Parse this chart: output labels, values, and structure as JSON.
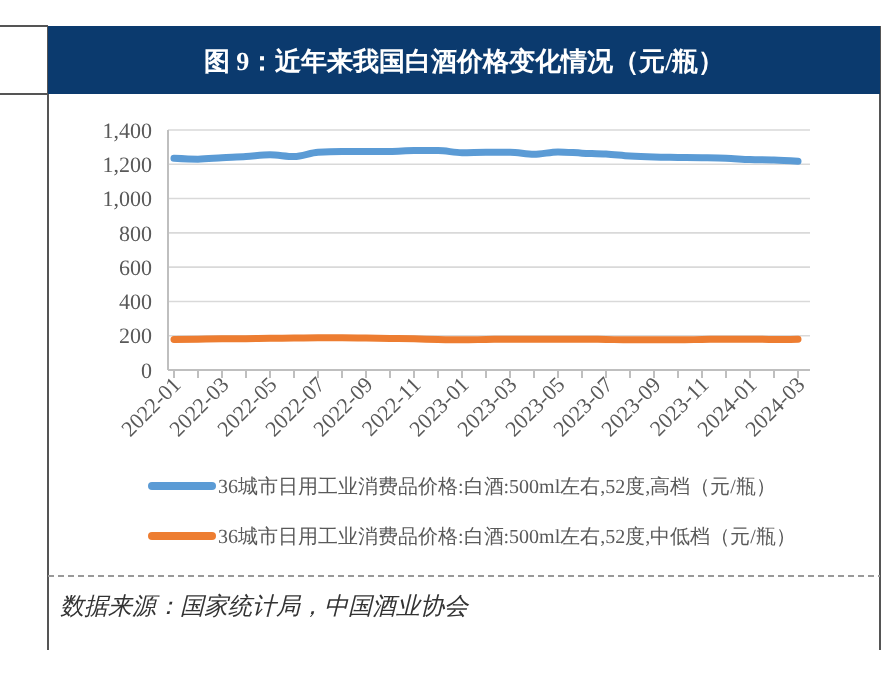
{
  "chart_data": {
    "type": "line",
    "title": "图 9：近年来我国白酒价格变化情况（元/瓶）",
    "categories": [
      "2022-01",
      null,
      "2022-03",
      null,
      "2022-05",
      null,
      "2022-07",
      null,
      "2022-09",
      null,
      "2022-11",
      null,
      "2023-01",
      null,
      "2023-03",
      null,
      "2023-05",
      null,
      "2023-07",
      null,
      "2023-09",
      null,
      "2023-11",
      null,
      "2024-01",
      null,
      "2024-03"
    ],
    "series": [
      {
        "name": "36城市日用工业消费品价格:白酒:500ml左右,52度,高档（元/瓶）",
        "color": "#5b9bd5",
        "values": [
          1235,
          1230,
          1238,
          1245,
          1255,
          1245,
          1270,
          1275,
          1275,
          1275,
          1280,
          1280,
          1268,
          1270,
          1270,
          1258,
          1272,
          1265,
          1260,
          1248,
          1242,
          1240,
          1238,
          1235,
          1228,
          1225,
          1218
        ]
      },
      {
        "name": "36城市日用工业消费品价格:白酒:500ml左右,52度,中低档（元/瓶）",
        "color": "#ed7d31",
        "values": [
          178,
          180,
          182,
          183,
          185,
          186,
          188,
          188,
          186,
          184,
          182,
          178,
          176,
          178,
          180,
          180,
          180,
          180,
          178,
          176,
          176,
          176,
          178,
          180,
          180,
          178,
          180
        ]
      }
    ],
    "ylim": [
      0,
      1400
    ],
    "yticks": [
      0,
      {
        "value": 200,
        "label": "200"
      },
      {
        "value": 400,
        "label": "400"
      },
      {
        "value": 600,
        "label": "600"
      },
      {
        "value": 800,
        "label": "800"
      },
      {
        "value": 1000,
        "label": "1,000"
      },
      {
        "value": 1200,
        "label": "1,200"
      },
      {
        "value": 1400,
        "label": "1,400"
      }
    ],
    "grid": "y",
    "legend": "bottom",
    "marker": "none",
    "line_style": "solid",
    "annotations": [
      "数据来源：国家统计局，中国酒业协会"
    ]
  }
}
